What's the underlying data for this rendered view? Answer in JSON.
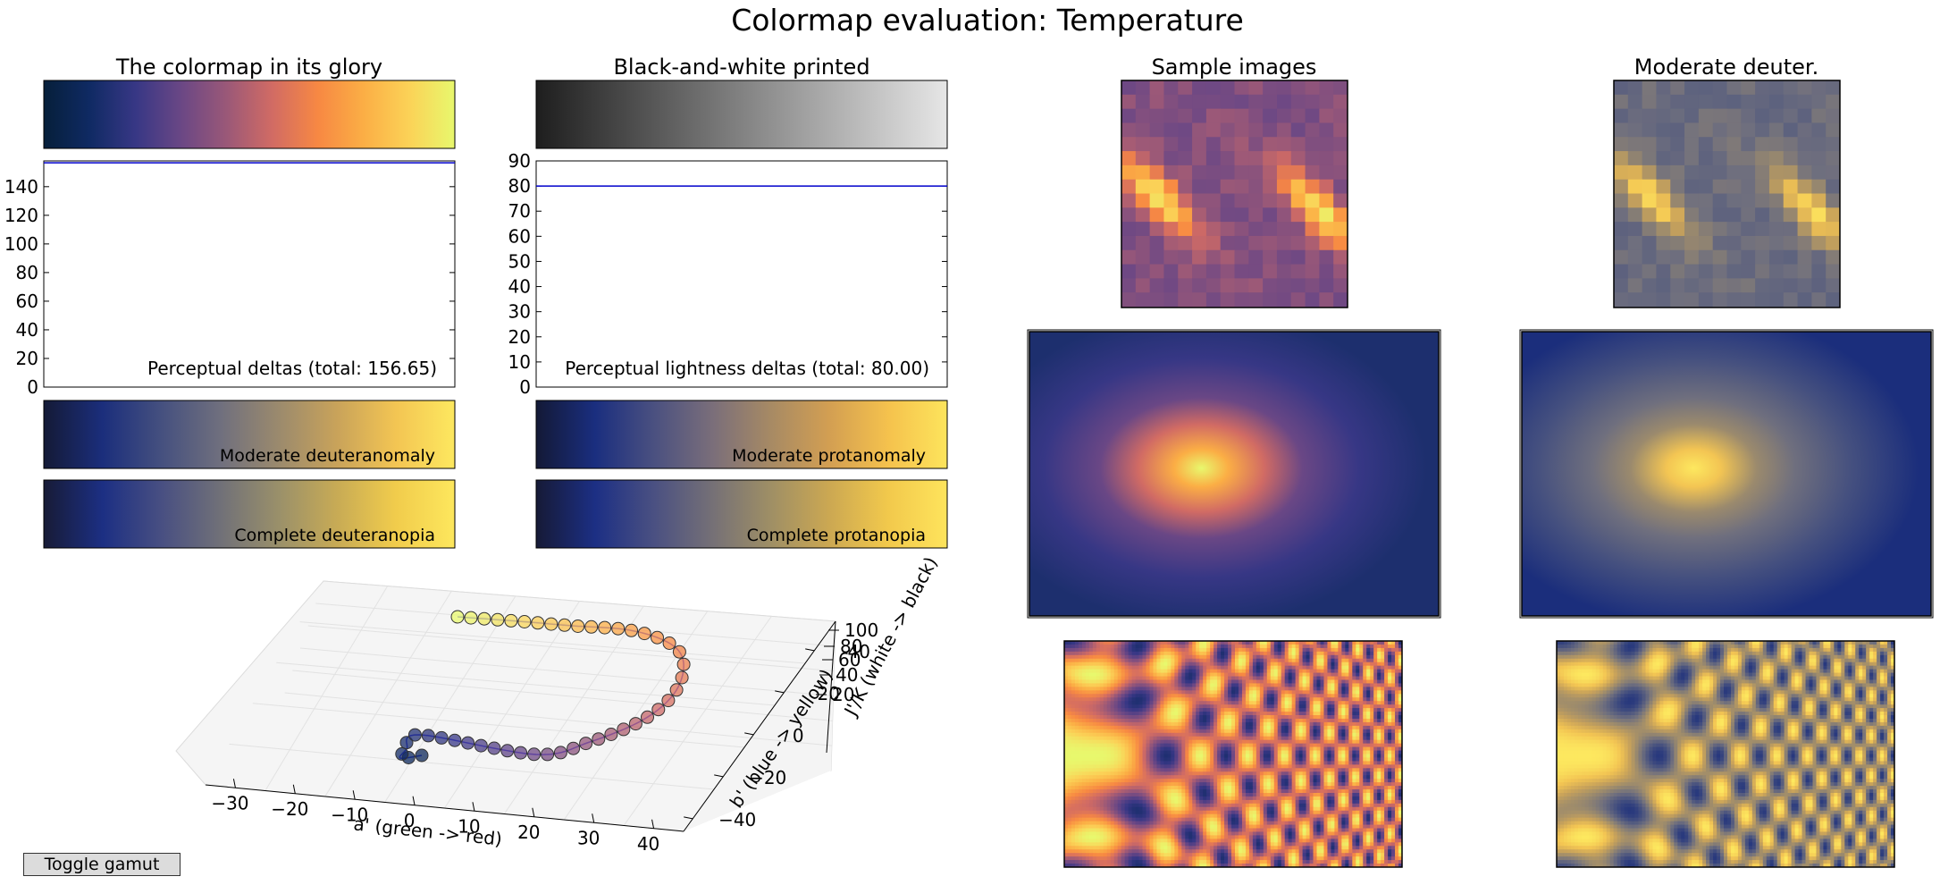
{
  "figure": {
    "title": "Colormap evaluation: Temperature",
    "toggle_label": "Toggle gamut"
  },
  "colors": {
    "colormap": [
      "#061f3a",
      "#0f2a63",
      "#373785",
      "#6a4785",
      "#9a5878",
      "#d16b64",
      "#f78843",
      "#fbae45",
      "#fbd257",
      "#e8f86d"
    ],
    "deuteranomaly": [
      "#141a36",
      "#1b2e7c",
      "#45507f",
      "#6f6f7e",
      "#9b8a6d",
      "#c9a35a",
      "#f3c553",
      "#fde85f"
    ],
    "deuteranopia": [
      "#171b36",
      "#1c2f83",
      "#484f82",
      "#707078",
      "#9a906a",
      "#c8ab55",
      "#f1cc4c",
      "#fde75d"
    ],
    "protanomaly": [
      "#131936",
      "#1a2e7f",
      "#4a5080",
      "#7a6e7a",
      "#a78a64",
      "#d39f52",
      "#f5c24d",
      "#fde45c"
    ],
    "protanopia": [
      "#161a36",
      "#1c2f84",
      "#4a5082",
      "#757076",
      "#9f8f65",
      "#cca852",
      "#f2c94c",
      "#fee45c"
    ],
    "grayscale": [
      "#1e1e1e",
      "#e6e6e6"
    ],
    "delta_line": "#0000cc",
    "path_line": "#3333ee"
  },
  "panels": {
    "colormap_glory": {
      "title": "The colormap in its glory"
    },
    "bw_printed": {
      "title": "Black-and-white printed"
    },
    "sample_images": {
      "title": "Sample images"
    },
    "moderate_deuter": {
      "title": "Moderate deuter."
    },
    "deuteranomaly_label": "Moderate deuteranomaly",
    "deuteranopia_label": "Complete deuteranopia",
    "protanomaly_label": "Moderate protanomaly",
    "protanopia_label": "Complete protanopia"
  },
  "chart_data": [
    {
      "type": "line",
      "name": "perceptual-deltas",
      "label": "Perceptual deltas (total: 156.65)",
      "ylim": [
        0,
        158
      ],
      "yticks": [
        "0",
        "20",
        "40",
        "60",
        "80",
        "100",
        "120",
        "140"
      ],
      "ytick_values": [
        0,
        20,
        40,
        60,
        80,
        100,
        120,
        140
      ],
      "x": [
        0,
        1
      ],
      "values": [
        156.65,
        156.65
      ]
    },
    {
      "type": "line",
      "name": "perceptual-lightness-deltas",
      "label": "Perceptual lightness deltas (total: 80.00)",
      "ylim": [
        0,
        90
      ],
      "yticks": [
        "0",
        "10",
        "20",
        "30",
        "40",
        "50",
        "60",
        "70",
        "80",
        "90"
      ],
      "ytick_values": [
        0,
        10,
        20,
        30,
        40,
        50,
        60,
        70,
        80,
        90
      ],
      "x": [
        0,
        1
      ],
      "values": [
        80.0,
        80.0
      ]
    },
    {
      "type": "scatter",
      "name": "colorspace-3d-path",
      "xlabel": "a' (green -> red)",
      "ylabel": "b' (blue -> yellow)",
      "zlabel": "J'/K (white -> black)",
      "xticks": [
        "−30",
        "−20",
        "−10",
        "0",
        "10",
        "20",
        "30",
        "40"
      ],
      "yticks": [
        "−40",
        "−20",
        "0",
        "20",
        "40"
      ],
      "zticks": [
        "20",
        "40",
        "60",
        "80",
        "100"
      ]
    }
  ]
}
